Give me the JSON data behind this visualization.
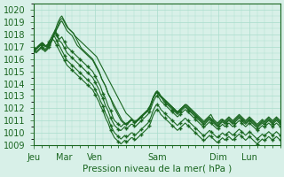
{
  "title": "",
  "xlabel": "Pression niveau de la mer( hPa )",
  "ylabel": "",
  "bg_color": "#d8f0e8",
  "grid_color": "#aaddcc",
  "line_color": "#1a6620",
  "ylim": [
    1009,
    1020.5
  ],
  "yticks": [
    1009,
    1010,
    1011,
    1012,
    1013,
    1014,
    1015,
    1016,
    1017,
    1018,
    1019,
    1020
  ],
  "day_labels": [
    "Jeu",
    "Mar",
    "Ven",
    "Sam",
    "Dim",
    "Lun"
  ],
  "day_positions": [
    0,
    24,
    48,
    96,
    144,
    168
  ],
  "num_points": 193,
  "lines": [
    [
      1017.0,
      1016.9,
      1016.8,
      1016.9,
      1017.0,
      1017.1,
      1017.2,
      1017.3,
      1017.2,
      1017.1,
      1017.0,
      1017.1,
      1017.2,
      1017.3,
      1017.5,
      1017.8,
      1018.0,
      1018.2,
      1018.5,
      1018.7,
      1019.0,
      1019.2,
      1019.3,
      1019.2,
      1019.0,
      1018.8,
      1018.6,
      1018.5,
      1018.4,
      1018.3,
      1018.2,
      1018.1,
      1017.9,
      1017.8,
      1017.7,
      1017.6,
      1017.5,
      1017.4,
      1017.3,
      1017.2,
      1017.1,
      1017.0,
      1016.9,
      1016.8,
      1016.7,
      1016.6,
      1016.5,
      1016.4,
      1016.3,
      1016.2,
      1016.0,
      1015.8,
      1015.6,
      1015.4,
      1015.2,
      1015.0,
      1014.8,
      1014.6,
      1014.4,
      1014.2,
      1014.0,
      1013.8,
      1013.6,
      1013.4,
      1013.2,
      1013.0,
      1012.8,
      1012.6,
      1012.4,
      1012.2,
      1012.0,
      1011.8,
      1011.6,
      1011.5,
      1011.4,
      1011.3,
      1011.2,
      1011.1,
      1011.0,
      1011.0,
      1011.0,
      1011.0,
      1011.1,
      1011.2,
      1011.3,
      1011.4,
      1011.5,
      1011.6,
      1011.7,
      1011.8,
      1012.0,
      1012.2,
      1012.5,
      1012.8,
      1013.0,
      1013.2,
      1013.3,
      1013.2,
      1013.1,
      1013.0,
      1012.9,
      1012.8,
      1012.7,
      1012.6,
      1012.5,
      1012.4,
      1012.3,
      1012.2,
      1012.1,
      1012.0,
      1011.9,
      1011.8,
      1011.7,
      1011.8,
      1011.9,
      1012.0,
      1012.1,
      1012.2,
      1012.3,
      1012.3,
      1012.2,
      1012.1,
      1012.0,
      1011.9,
      1011.8,
      1011.7,
      1011.6,
      1011.5,
      1011.4,
      1011.3,
      1011.2,
      1011.1,
      1011.0,
      1011.0,
      1011.1,
      1011.2,
      1011.3,
      1011.4,
      1011.5,
      1011.3,
      1011.1,
      1011.0,
      1010.9,
      1010.8,
      1010.9,
      1011.0,
      1011.1,
      1011.1,
      1011.0,
      1011.0,
      1011.1,
      1011.2,
      1011.3,
      1011.2,
      1011.1,
      1011.0,
      1011.1,
      1011.2,
      1011.3,
      1011.4,
      1011.5,
      1011.4,
      1011.3,
      1011.2,
      1011.1,
      1011.0,
      1011.1,
      1011.2,
      1011.3,
      1011.2,
      1011.1,
      1011.0,
      1010.9,
      1010.8,
      1010.7,
      1010.8,
      1010.9,
      1011.0,
      1011.1,
      1011.0,
      1011.0,
      1011.1,
      1011.2,
      1011.3,
      1011.2,
      1011.1,
      1011.0,
      1011.1,
      1011.2,
      1011.3,
      1011.2,
      1011.1,
      1011.0
    ],
    [
      1017.0,
      1016.9,
      1016.8,
      1016.9,
      1017.0,
      1017.1,
      1017.2,
      1017.3,
      1017.2,
      1017.1,
      1017.0,
      1017.0,
      1017.1,
      1017.2,
      1017.5,
      1017.8,
      1018.1,
      1018.4,
      1018.7,
      1019.0,
      1019.2,
      1019.4,
      1019.5,
      1019.3,
      1019.1,
      1018.9,
      1018.7,
      1018.5,
      1018.4,
      1018.3,
      1018.2,
      1018.1,
      1017.9,
      1017.7,
      1017.5,
      1017.3,
      1017.1,
      1016.9,
      1016.8,
      1016.7,
      1016.6,
      1016.5,
      1016.4,
      1016.3,
      1016.2,
      1016.1,
      1016.0,
      1015.8,
      1015.6,
      1015.4,
      1015.2,
      1015.0,
      1014.7,
      1014.4,
      1014.2,
      1014.0,
      1013.8,
      1013.5,
      1013.2,
      1013.0,
      1012.8,
      1012.6,
      1012.4,
      1012.2,
      1012.0,
      1011.8,
      1011.6,
      1011.4,
      1011.2,
      1011.0,
      1010.9,
      1010.8,
      1010.7,
      1010.8,
      1010.9,
      1011.0,
      1011.1,
      1011.0,
      1010.9,
      1010.9,
      1011.0,
      1011.1,
      1011.2,
      1011.3,
      1011.4,
      1011.5,
      1011.6,
      1011.7,
      1011.8,
      1011.9,
      1012.1,
      1012.3,
      1012.6,
      1012.9,
      1013.1,
      1013.3,
      1013.4,
      1013.3,
      1013.2,
      1013.0,
      1012.9,
      1012.8,
      1012.7,
      1012.6,
      1012.5,
      1012.4,
      1012.3,
      1012.2,
      1012.1,
      1012.0,
      1011.9,
      1011.8,
      1011.7,
      1011.8,
      1011.9,
      1012.0,
      1012.1,
      1012.2,
      1012.3,
      1012.2,
      1012.1,
      1012.0,
      1011.9,
      1011.8,
      1011.7,
      1011.6,
      1011.5,
      1011.4,
      1011.3,
      1011.2,
      1011.1,
      1011.0,
      1010.9,
      1010.9,
      1011.0,
      1011.1,
      1011.2,
      1011.3,
      1011.2,
      1011.1,
      1011.0,
      1010.9,
      1010.8,
      1010.7,
      1010.8,
      1010.9,
      1011.0,
      1011.1,
      1011.0,
      1010.9,
      1011.0,
      1011.1,
      1011.2,
      1011.1,
      1011.0,
      1010.9,
      1011.0,
      1011.1,
      1011.2,
      1011.3,
      1011.4,
      1011.3,
      1011.2,
      1011.1,
      1011.0,
      1010.9,
      1011.0,
      1011.1,
      1011.2,
      1011.1,
      1011.0,
      1010.9,
      1010.8,
      1010.7,
      1010.6,
      1010.7,
      1010.8,
      1010.9,
      1011.0,
      1010.9,
      1010.9,
      1011.0,
      1011.1,
      1011.2,
      1011.1,
      1011.0,
      1010.9,
      1011.0,
      1011.1,
      1011.2,
      1011.1,
      1011.0,
      1010.9
    ],
    [
      1017.0,
      1016.9,
      1016.8,
      1016.9,
      1017.0,
      1017.1,
      1017.2,
      1017.3,
      1017.2,
      1017.1,
      1017.1,
      1017.2,
      1017.3,
      1017.4,
      1017.6,
      1017.8,
      1018.0,
      1018.2,
      1018.4,
      1018.6,
      1018.8,
      1019.0,
      1019.1,
      1018.9,
      1018.7,
      1018.5,
      1018.3,
      1018.2,
      1018.1,
      1018.0,
      1017.9,
      1017.7,
      1017.5,
      1017.3,
      1017.1,
      1017.0,
      1016.9,
      1016.8,
      1016.7,
      1016.6,
      1016.5,
      1016.4,
      1016.3,
      1016.2,
      1016.1,
      1016.0,
      1015.9,
      1015.7,
      1015.5,
      1015.3,
      1015.1,
      1014.9,
      1014.7,
      1014.4,
      1014.2,
      1014.0,
      1013.8,
      1013.5,
      1013.2,
      1013.0,
      1012.8,
      1012.5,
      1012.2,
      1012.0,
      1011.8,
      1011.6,
      1011.4,
      1011.2,
      1011.0,
      1010.9,
      1010.8,
      1010.7,
      1010.7,
      1010.8,
      1010.9,
      1011.0,
      1011.1,
      1011.0,
      1010.9,
      1010.8,
      1010.9,
      1011.0,
      1011.1,
      1011.2,
      1011.3,
      1011.4,
      1011.5,
      1011.6,
      1011.7,
      1011.8,
      1012.0,
      1012.2,
      1012.5,
      1012.8,
      1013.0,
      1013.2,
      1013.3,
      1013.2,
      1013.1,
      1013.0,
      1012.8,
      1012.7,
      1012.6,
      1012.5,
      1012.4,
      1012.3,
      1012.2,
      1012.1,
      1012.0,
      1011.9,
      1011.8,
      1011.7,
      1011.6,
      1011.7,
      1011.8,
      1011.9,
      1012.0,
      1012.1,
      1012.2,
      1012.1,
      1012.0,
      1011.9,
      1011.8,
      1011.7,
      1011.6,
      1011.5,
      1011.4,
      1011.3,
      1011.2,
      1011.1,
      1011.0,
      1010.9,
      1010.8,
      1010.8,
      1010.9,
      1011.0,
      1011.1,
      1011.2,
      1011.1,
      1011.0,
      1010.9,
      1010.8,
      1010.7,
      1010.6,
      1010.7,
      1010.8,
      1010.9,
      1011.0,
      1010.9,
      1010.8,
      1010.9,
      1011.0,
      1011.1,
      1011.0,
      1010.9,
      1010.8,
      1010.9,
      1011.0,
      1011.1,
      1011.2,
      1011.3,
      1011.2,
      1011.1,
      1011.0,
      1010.9,
      1010.8,
      1010.9,
      1011.0,
      1011.1,
      1011.0,
      1010.9,
      1010.8,
      1010.7,
      1010.6,
      1010.5,
      1010.6,
      1010.7,
      1010.8,
      1010.9,
      1010.8,
      1010.8,
      1010.9,
      1011.0,
      1011.1,
      1011.0,
      1010.9,
      1010.8,
      1010.9,
      1011.0,
      1011.1,
      1011.0,
      1010.9,
      1010.8
    ],
    [
      1016.8,
      1016.7,
      1016.8,
      1017.0,
      1017.1,
      1017.2,
      1017.3,
      1017.2,
      1017.1,
      1017.0,
      1017.1,
      1017.2,
      1017.4,
      1017.6,
      1017.8,
      1018.0,
      1018.2,
      1018.4,
      1018.0,
      1017.8,
      1017.6,
      1017.7,
      1017.8,
      1017.6,
      1017.4,
      1017.2,
      1017.0,
      1016.9,
      1016.8,
      1016.7,
      1016.6,
      1016.5,
      1016.4,
      1016.3,
      1016.2,
      1016.1,
      1016.0,
      1015.9,
      1015.8,
      1015.7,
      1015.6,
      1015.5,
      1015.4,
      1015.3,
      1015.2,
      1015.1,
      1015.0,
      1014.8,
      1014.6,
      1014.4,
      1014.2,
      1014.0,
      1013.8,
      1013.5,
      1013.2,
      1013.0,
      1012.8,
      1012.5,
      1012.2,
      1012.0,
      1011.8,
      1011.5,
      1011.2,
      1011.0,
      1010.9,
      1010.8,
      1010.7,
      1010.6,
      1010.5,
      1010.6,
      1010.7,
      1010.8,
      1010.7,
      1010.7,
      1010.8,
      1010.9,
      1011.0,
      1011.0,
      1010.9,
      1010.8,
      1010.9,
      1011.0,
      1011.1,
      1011.2,
      1011.3,
      1011.4,
      1011.5,
      1011.6,
      1011.7,
      1011.8,
      1012.0,
      1012.2,
      1012.5,
      1012.8,
      1013.0,
      1013.2,
      1013.3,
      1013.2,
      1013.0,
      1012.9,
      1012.8,
      1012.6,
      1012.5,
      1012.4,
      1012.3,
      1012.2,
      1012.1,
      1012.0,
      1011.9,
      1011.8,
      1011.7,
      1011.6,
      1011.5,
      1011.6,
      1011.7,
      1011.8,
      1011.9,
      1012.0,
      1012.1,
      1012.0,
      1011.9,
      1011.8,
      1011.7,
      1011.6,
      1011.5,
      1011.4,
      1011.3,
      1011.2,
      1011.1,
      1011.0,
      1010.9,
      1010.8,
      1010.7,
      1010.7,
      1010.8,
      1010.9,
      1011.0,
      1011.1,
      1011.0,
      1010.9,
      1010.8,
      1010.7,
      1010.6,
      1010.5,
      1010.6,
      1010.7,
      1010.8,
      1010.9,
      1010.8,
      1010.7,
      1010.8,
      1010.9,
      1011.0,
      1010.9,
      1010.8,
      1010.7,
      1010.8,
      1010.9,
      1011.0,
      1011.1,
      1011.2,
      1011.1,
      1011.0,
      1010.9,
      1010.8,
      1010.7,
      1010.8,
      1010.9,
      1011.0,
      1010.9,
      1010.8,
      1010.7,
      1010.6,
      1010.5,
      1010.4,
      1010.5,
      1010.6,
      1010.7,
      1010.8,
      1010.7,
      1010.7,
      1010.8,
      1010.9,
      1011.0,
      1010.9,
      1010.8,
      1010.7,
      1010.8,
      1010.9,
      1011.0,
      1010.9,
      1010.8,
      1010.7
    ],
    [
      1016.9,
      1016.8,
      1016.9,
      1017.0,
      1017.1,
      1017.2,
      1017.1,
      1017.0,
      1016.9,
      1016.8,
      1016.9,
      1017.0,
      1017.2,
      1017.4,
      1017.6,
      1017.8,
      1018.0,
      1018.1,
      1017.9,
      1017.7,
      1017.5,
      1017.4,
      1017.3,
      1017.1,
      1016.9,
      1016.7,
      1016.5,
      1016.4,
      1016.3,
      1016.2,
      1016.1,
      1016.0,
      1015.9,
      1015.8,
      1015.7,
      1015.6,
      1015.5,
      1015.4,
      1015.3,
      1015.2,
      1015.1,
      1015.0,
      1014.9,
      1014.8,
      1014.7,
      1014.6,
      1014.5,
      1014.3,
      1014.1,
      1013.9,
      1013.7,
      1013.5,
      1013.2,
      1013.0,
      1012.8,
      1012.5,
      1012.2,
      1012.0,
      1011.8,
      1011.5,
      1011.2,
      1011.0,
      1010.8,
      1010.6,
      1010.5,
      1010.4,
      1010.3,
      1010.2,
      1010.2,
      1010.3,
      1010.4,
      1010.5,
      1010.4,
      1010.4,
      1010.5,
      1010.6,
      1010.7,
      1010.7,
      1010.6,
      1010.5,
      1010.6,
      1010.7,
      1010.8,
      1010.9,
      1011.0,
      1011.1,
      1011.2,
      1011.3,
      1011.4,
      1011.5,
      1011.7,
      1011.9,
      1012.2,
      1012.5,
      1012.7,
      1012.9,
      1013.0,
      1012.9,
      1012.8,
      1012.6,
      1012.5,
      1012.4,
      1012.3,
      1012.2,
      1012.1,
      1012.0,
      1011.9,
      1011.8,
      1011.7,
      1011.6,
      1011.5,
      1011.4,
      1011.3,
      1011.4,
      1011.5,
      1011.6,
      1011.7,
      1011.8,
      1011.9,
      1011.8,
      1011.7,
      1011.6,
      1011.5,
      1011.4,
      1011.3,
      1011.2,
      1011.1,
      1011.0,
      1010.9,
      1010.8,
      1010.7,
      1010.6,
      1010.5,
      1010.5,
      1010.6,
      1010.7,
      1010.8,
      1010.9,
      1010.8,
      1010.7,
      1010.6,
      1010.5,
      1010.4,
      1010.3,
      1010.4,
      1010.5,
      1010.6,
      1010.7,
      1010.6,
      1010.5,
      1010.6,
      1010.7,
      1010.8,
      1010.7,
      1010.6,
      1010.5,
      1010.6,
      1010.7,
      1010.8,
      1010.9,
      1011.0,
      1010.9,
      1010.8,
      1010.7,
      1010.6,
      1010.5,
      1010.6,
      1010.7,
      1010.8,
      1010.7,
      1010.6,
      1010.5,
      1010.4,
      1010.3,
      1010.2,
      1010.3,
      1010.4,
      1010.5,
      1010.6,
      1010.5,
      1010.5,
      1010.6,
      1010.7,
      1010.8,
      1010.7,
      1010.6,
      1010.5,
      1010.6,
      1010.7,
      1010.8,
      1010.7,
      1010.6,
      1010.5
    ],
    [
      1016.8,
      1016.7,
      1016.6,
      1016.7,
      1016.8,
      1016.9,
      1017.0,
      1016.9,
      1016.8,
      1016.7,
      1016.8,
      1016.9,
      1017.1,
      1017.3,
      1017.5,
      1017.7,
      1017.9,
      1017.7,
      1017.5,
      1017.3,
      1017.1,
      1016.9,
      1016.7,
      1016.5,
      1016.3,
      1016.1,
      1015.9,
      1015.8,
      1015.7,
      1015.6,
      1015.5,
      1015.4,
      1015.3,
      1015.2,
      1015.1,
      1015.0,
      1014.9,
      1014.8,
      1014.7,
      1014.6,
      1014.5,
      1014.4,
      1014.3,
      1014.2,
      1014.1,
      1014.0,
      1013.9,
      1013.7,
      1013.5,
      1013.3,
      1013.1,
      1012.9,
      1012.6,
      1012.4,
      1012.2,
      1011.9,
      1011.6,
      1011.4,
      1011.2,
      1010.9,
      1010.6,
      1010.4,
      1010.2,
      1010.0,
      1009.9,
      1009.8,
      1009.7,
      1009.6,
      1009.5,
      1009.6,
      1009.7,
      1009.8,
      1009.7,
      1009.7,
      1009.8,
      1009.9,
      1010.0,
      1010.0,
      1009.9,
      1009.8,
      1009.9,
      1010.0,
      1010.1,
      1010.2,
      1010.3,
      1010.4,
      1010.5,
      1010.6,
      1010.7,
      1010.8,
      1011.0,
      1011.2,
      1011.5,
      1011.8,
      1012.0,
      1012.2,
      1012.3,
      1012.2,
      1012.1,
      1011.9,
      1011.8,
      1011.7,
      1011.6,
      1011.5,
      1011.4,
      1011.3,
      1011.2,
      1011.1,
      1011.0,
      1010.9,
      1010.8,
      1010.7,
      1010.6,
      1010.7,
      1010.8,
      1010.9,
      1011.0,
      1011.1,
      1011.2,
      1011.1,
      1011.0,
      1010.9,
      1010.8,
      1010.7,
      1010.6,
      1010.5,
      1010.4,
      1010.3,
      1010.2,
      1010.1,
      1010.0,
      1009.9,
      1009.8,
      1009.8,
      1009.9,
      1010.0,
      1010.1,
      1010.2,
      1010.1,
      1010.0,
      1009.9,
      1009.8,
      1009.7,
      1009.6,
      1009.7,
      1009.8,
      1009.9,
      1010.0,
      1009.9,
      1009.8,
      1009.9,
      1010.0,
      1010.1,
      1010.0,
      1009.9,
      1009.8,
      1009.9,
      1010.0,
      1010.1,
      1010.2,
      1010.3,
      1010.2,
      1010.1,
      1010.0,
      1009.9,
      1009.8,
      1009.9,
      1010.0,
      1010.1,
      1010.0,
      1009.9,
      1009.8,
      1009.7,
      1009.6,
      1009.5,
      1009.6,
      1009.7,
      1009.8,
      1009.9,
      1009.8,
      1009.8,
      1009.9,
      1010.0,
      1010.1,
      1010.0,
      1009.9,
      1009.8,
      1009.9,
      1010.0,
      1010.1,
      1010.0,
      1009.9,
      1009.8
    ],
    [
      1016.7,
      1016.6,
      1016.5,
      1016.6,
      1016.7,
      1016.8,
      1016.9,
      1016.8,
      1016.7,
      1016.6,
      1016.7,
      1016.8,
      1017.0,
      1017.2,
      1017.4,
      1017.6,
      1017.5,
      1017.3,
      1017.1,
      1016.9,
      1016.7,
      1016.5,
      1016.3,
      1016.1,
      1015.9,
      1015.7,
      1015.5,
      1015.4,
      1015.3,
      1015.2,
      1015.1,
      1015.0,
      1014.9,
      1014.8,
      1014.7,
      1014.6,
      1014.5,
      1014.4,
      1014.3,
      1014.2,
      1014.1,
      1014.0,
      1013.9,
      1013.8,
      1013.7,
      1013.6,
      1013.5,
      1013.3,
      1013.1,
      1012.9,
      1012.7,
      1012.5,
      1012.2,
      1012.0,
      1011.8,
      1011.5,
      1011.2,
      1011.0,
      1010.8,
      1010.5,
      1010.2,
      1010.0,
      1009.8,
      1009.6,
      1009.5,
      1009.4,
      1009.3,
      1009.2,
      1009.1,
      1009.2,
      1009.3,
      1009.4,
      1009.3,
      1009.3,
      1009.4,
      1009.5,
      1009.6,
      1009.6,
      1009.5,
      1009.4,
      1009.5,
      1009.6,
      1009.7,
      1009.8,
      1009.9,
      1010.0,
      1010.1,
      1010.2,
      1010.3,
      1010.4,
      1010.6,
      1010.8,
      1011.1,
      1011.4,
      1011.6,
      1011.8,
      1011.9,
      1011.8,
      1011.7,
      1011.5,
      1011.4,
      1011.3,
      1011.2,
      1011.1,
      1011.0,
      1010.9,
      1010.8,
      1010.7,
      1010.6,
      1010.5,
      1010.4,
      1010.3,
      1010.2,
      1010.3,
      1010.4,
      1010.5,
      1010.6,
      1010.7,
      1010.8,
      1010.7,
      1010.6,
      1010.5,
      1010.4,
      1010.3,
      1010.2,
      1010.1,
      1010.0,
      1009.9,
      1009.8,
      1009.7,
      1009.6,
      1009.5,
      1009.4,
      1009.4,
      1009.5,
      1009.6,
      1009.7,
      1009.8,
      1009.7,
      1009.6,
      1009.5,
      1009.4,
      1009.3,
      1009.2,
      1009.3,
      1009.4,
      1009.5,
      1009.6,
      1009.5,
      1009.4,
      1009.5,
      1009.6,
      1009.7,
      1009.6,
      1009.5,
      1009.4,
      1009.5,
      1009.6,
      1009.7,
      1009.8,
      1009.9,
      1009.8,
      1009.7,
      1009.6,
      1009.5,
      1009.4,
      1009.5,
      1009.6,
      1009.7,
      1009.6,
      1009.5,
      1009.4,
      1009.3,
      1009.2,
      1009.1,
      1009.2,
      1009.3,
      1009.4,
      1009.5,
      1009.4,
      1009.4,
      1009.5,
      1009.6,
      1009.7,
      1009.6,
      1009.5,
      1009.4,
      1009.5,
      1009.6,
      1009.7,
      1009.6,
      1009.5,
      1009.4
    ]
  ]
}
